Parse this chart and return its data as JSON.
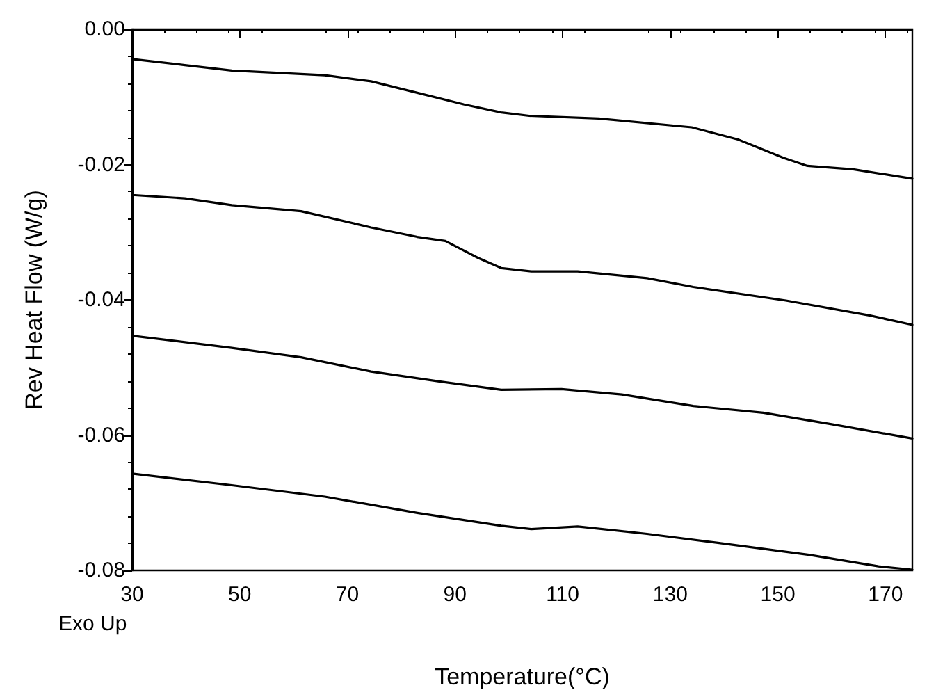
{
  "chart_data": {
    "type": "line",
    "xlabel": "Temperature(°C)",
    "ylabel": "Rev Heat Flow (W/g)",
    "annotations": [
      "Exo Up"
    ],
    "xlim": [
      30,
      175
    ],
    "xticks": [
      30,
      50,
      70,
      90,
      110,
      130,
      150,
      170
    ],
    "ylim": [
      -0.08,
      0
    ],
    "yticks": [
      {
        "value": 0,
        "label": "0.00"
      },
      {
        "value": -0.02,
        "label": "-0.02"
      },
      {
        "value": -0.04,
        "label": "-0.04"
      },
      {
        "value": -0.06,
        "label": "-0.06"
      },
      {
        "value": -0.08,
        "label": "-0.08"
      }
    ],
    "marker": "none",
    "line_style": "solid",
    "series": [
      {
        "color": "#000000",
        "x": [
          30,
          39.8,
          48.5,
          65.8,
          74.4,
          83,
          91.6,
          98.6,
          103.8,
          116.7,
          134,
          142.6,
          151,
          155.5,
          164,
          175
        ],
        "values": [
          -0.0044,
          -0.0053,
          -0.0061,
          -0.0068,
          -0.0077,
          -0.0094,
          -0.0111,
          -0.0123,
          -0.0128,
          -0.0132,
          -0.0145,
          -0.0163,
          -0.019,
          -0.0202,
          -0.0207,
          -0.0221
        ]
      },
      {
        "color": "#000000",
        "x": [
          30,
          39.8,
          48.5,
          61.4,
          74.4,
          83,
          88.2,
          94.3,
          98.6,
          104.2,
          112.8,
          125.7,
          134.3,
          151.5,
          167,
          175
        ],
        "values": [
          -0.0245,
          -0.025,
          -0.026,
          -0.0269,
          -0.0293,
          -0.0307,
          -0.0313,
          -0.0338,
          -0.0353,
          -0.0358,
          -0.0358,
          -0.0368,
          -0.0381,
          -0.0401,
          -0.0423,
          -0.0437
        ]
      },
      {
        "color": "#000000",
        "x": [
          30,
          48.5,
          61.4,
          74.4,
          87.3,
          98.6,
          109.8,
          121,
          134.3,
          147.3,
          160,
          175
        ],
        "values": [
          -0.0453,
          -0.0471,
          -0.0485,
          -0.0506,
          -0.0521,
          -0.0533,
          -0.0532,
          -0.054,
          -0.0557,
          -0.0567,
          -0.0584,
          -0.0605
        ]
      },
      {
        "color": "#000000",
        "x": [
          30,
          48.5,
          65.8,
          83,
          98.6,
          104.2,
          112.8,
          125.7,
          138.6,
          155.8,
          168.7,
          175
        ],
        "values": [
          -0.0657,
          -0.0674,
          -0.0691,
          -0.0715,
          -0.0734,
          -0.0739,
          -0.0735,
          -0.0746,
          -0.0759,
          -0.0777,
          -0.0794,
          -0.0799
        ]
      }
    ]
  }
}
